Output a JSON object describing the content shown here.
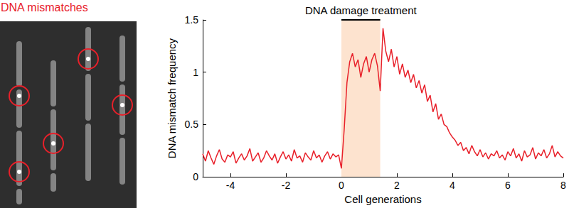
{
  "chart_data": {
    "type": "line",
    "panel_label": "DNA mismatches",
    "panel_label_color": "#e8202a",
    "x_label": "Cell generations",
    "y_label": "DNA mismatch frequency",
    "xlim": [
      -5,
      8
    ],
    "xticks": [
      -4,
      -2,
      0,
      2,
      4,
      6,
      8
    ],
    "ylim": [
      0,
      1.5
    ],
    "yticks": [
      0,
      0.5,
      1,
      1.5
    ],
    "grid": false,
    "color": "#e8202a",
    "highlight": {
      "label": "DNA damage treatment",
      "x": [
        0,
        1.4
      ],
      "color": "#fde3cf"
    },
    "x": [
      -5,
      -4.9,
      -4.8,
      -4.7,
      -4.6,
      -4.5,
      -4.4,
      -4.3,
      -4.2,
      -4.1,
      -4,
      -3.9,
      -3.8,
      -3.7,
      -3.6,
      -3.5,
      -3.4,
      -3.3,
      -3.2,
      -3.1,
      -3,
      -2.9,
      -2.8,
      -2.7,
      -2.6,
      -2.5,
      -2.4,
      -2.3,
      -2.2,
      -2.1,
      -2,
      -1.9,
      -1.8,
      -1.7,
      -1.6,
      -1.5,
      -1.4,
      -1.3,
      -1.2,
      -1.1,
      -1,
      -0.9,
      -0.8,
      -0.7,
      -0.6,
      -0.5,
      -0.4,
      -0.3,
      -0.2,
      -0.1,
      0,
      0.1,
      0.2,
      0.3,
      0.4,
      0.5,
      0.6,
      0.7,
      0.8,
      0.9,
      1,
      1.1,
      1.2,
      1.3,
      1.4,
      1.5,
      1.6,
      1.7,
      1.8,
      1.9,
      2,
      2.1,
      2.2,
      2.3,
      2.4,
      2.5,
      2.6,
      2.7,
      2.8,
      2.9,
      3,
      3.1,
      3.2,
      3.3,
      3.4,
      3.5,
      3.6,
      3.7,
      3.8,
      3.9,
      4,
      4.1,
      4.2,
      4.3,
      4.4,
      4.5,
      4.6,
      4.7,
      4.8,
      4.9,
      5,
      5.1,
      5.2,
      5.3,
      5.4,
      5.5,
      5.6,
      5.7,
      5.8,
      5.9,
      6,
      6.1,
      6.2,
      6.3,
      6.4,
      6.5,
      6.6,
      6.7,
      6.8,
      6.9,
      7,
      7.1,
      7.2,
      7.3,
      7.4,
      7.5,
      7.6,
      7.7,
      7.8,
      7.9,
      8
    ],
    "values": [
      0.22,
      0.15,
      0.25,
      0.18,
      0.12,
      0.2,
      0.26,
      0.17,
      0.14,
      0.21,
      0.19,
      0.24,
      0.13,
      0.18,
      0.22,
      0.16,
      0.2,
      0.27,
      0.15,
      0.19,
      0.23,
      0.14,
      0.18,
      0.25,
      0.2,
      0.16,
      0.22,
      0.13,
      0.19,
      0.24,
      0.17,
      0.21,
      0.15,
      0.26,
      0.18,
      0.2,
      0.14,
      0.23,
      0.19,
      0.16,
      0.25,
      0.18,
      0.21,
      0.14,
      0.2,
      0.24,
      0.17,
      0.22,
      0.19,
      0.21,
      0.08,
      0.45,
      0.9,
      1.1,
      1.18,
      1.05,
      1.12,
      0.95,
      1.08,
      1.15,
      1.0,
      1.12,
      1.18,
      1.06,
      0.82,
      1.42,
      1.2,
      1.1,
      1.22,
      1.05,
      1.15,
      0.98,
      1.08,
      0.95,
      1.02,
      0.9,
      0.98,
      0.85,
      0.92,
      0.8,
      0.88,
      0.72,
      0.78,
      0.62,
      0.7,
      0.55,
      0.6,
      0.5,
      0.48,
      0.42,
      0.38,
      0.35,
      0.3,
      0.33,
      0.25,
      0.28,
      0.22,
      0.3,
      0.24,
      0.2,
      0.26,
      0.19,
      0.23,
      0.17,
      0.22,
      0.2,
      0.25,
      0.18,
      0.21,
      0.16,
      0.24,
      0.2,
      0.27,
      0.18,
      0.22,
      0.15,
      0.25,
      0.19,
      0.21,
      0.28,
      0.17,
      0.23,
      0.2,
      0.26,
      0.18,
      0.22,
      0.3,
      0.19,
      0.24,
      0.2,
      0.18
    ]
  }
}
